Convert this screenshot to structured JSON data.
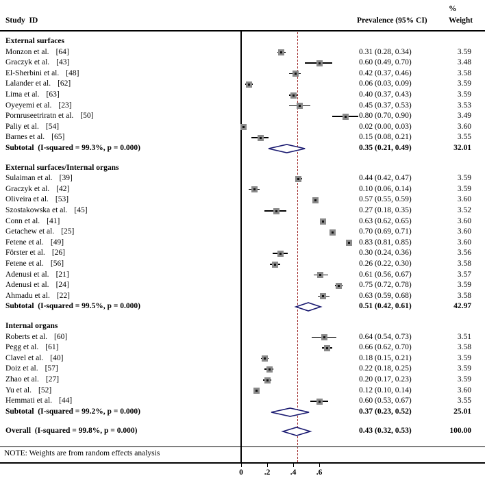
{
  "chart_data": {
    "type": "forest",
    "columns": {
      "study": "Study  ID",
      "effect": "Prevalence (95% CI)",
      "weight_pct": "%",
      "weight": "Weight"
    },
    "axis": {
      "ticks": [
        0,
        0.2,
        0.4,
        0.6
      ],
      "tick_labels": [
        "0",
        ".2",
        ".4",
        ".6"
      ],
      "null_line": 0,
      "overall_line": 0.43,
      "xlim": [
        0,
        0.95
      ]
    },
    "colors": {
      "marker": "#8a8a8a",
      "marker_dot": "#111111",
      "ci_line": "#000000",
      "diamond": "#191970",
      "overall_dash": "#a02c2c"
    },
    "groups": [
      {
        "label": "External surfaces",
        "studies": [
          {
            "label": "Monzon et al.",
            "ref": "[64]",
            "est": 0.31,
            "lo": 0.28,
            "hi": 0.34,
            "ci_text": "0.31 (0.28, 0.34)",
            "weight": "3.59"
          },
          {
            "label": "Graczyk et al.",
            "ref": "[43]",
            "est": 0.6,
            "lo": 0.49,
            "hi": 0.7,
            "ci_text": "0.60 (0.49, 0.70)",
            "weight": "3.48"
          },
          {
            "label": "El-Sherbini et al.",
            "ref": "[48]",
            "est": 0.42,
            "lo": 0.37,
            "hi": 0.46,
            "ci_text": "0.42 (0.37, 0.46)",
            "weight": "3.58"
          },
          {
            "label": "Lalander et al.",
            "ref": "[62]",
            "est": 0.06,
            "lo": 0.03,
            "hi": 0.09,
            "ci_text": "0.06 (0.03, 0.09)",
            "weight": "3.59"
          },
          {
            "label": "Lima et al.",
            "ref": "[63]",
            "est": 0.4,
            "lo": 0.37,
            "hi": 0.43,
            "ci_text": "0.40 (0.37, 0.43)",
            "weight": "3.59"
          },
          {
            "label": "Oyeyemi et al.",
            "ref": "[23]",
            "est": 0.45,
            "lo": 0.37,
            "hi": 0.53,
            "ci_text": "0.45 (0.37, 0.53)",
            "weight": "3.53"
          },
          {
            "label": "Pornruseetriratn et al.",
            "ref": "[50]",
            "est": 0.8,
            "lo": 0.7,
            "hi": 0.9,
            "ci_text": "0.80 (0.70, 0.90)",
            "weight": "3.49"
          },
          {
            "label": "Paliy et al.",
            "ref": "[54]",
            "est": 0.02,
            "lo": 0.0,
            "hi": 0.03,
            "ci_text": "0.02 (0.00, 0.03)",
            "weight": "3.60"
          },
          {
            "label": "Barnes et al.",
            "ref": "[65]",
            "est": 0.15,
            "lo": 0.08,
            "hi": 0.21,
            "ci_text": "0.15 (0.08, 0.21)",
            "weight": "3.55"
          }
        ],
        "subtotal": {
          "label": "Subtotal  (I-squared = 99.3%, p = 0.000)",
          "est": 0.35,
          "lo": 0.21,
          "hi": 0.49,
          "ci_text": "0.35 (0.21, 0.49)",
          "weight": "32.01"
        }
      },
      {
        "label": "External surfaces/Internal organs",
        "studies": [
          {
            "label": "Sulaiman et al.",
            "ref": "[39]",
            "est": 0.44,
            "lo": 0.42,
            "hi": 0.47,
            "ci_text": "0.44 (0.42, 0.47)",
            "weight": "3.59"
          },
          {
            "label": "Graczyk et al.",
            "ref": "[42]",
            "est": 0.1,
            "lo": 0.06,
            "hi": 0.14,
            "ci_text": "0.10 (0.06, 0.14)",
            "weight": "3.59"
          },
          {
            "label": "Oliveira et al.",
            "ref": "[53]",
            "est": 0.57,
            "lo": 0.55,
            "hi": 0.59,
            "ci_text": "0.57 (0.55, 0.59)",
            "weight": "3.60"
          },
          {
            "label": "Szostakowska et al.",
            "ref": "[45]",
            "est": 0.27,
            "lo": 0.18,
            "hi": 0.35,
            "ci_text": "0.27 (0.18, 0.35)",
            "weight": "3.52"
          },
          {
            "label": "Conn et al.",
            "ref": "[41]",
            "est": 0.63,
            "lo": 0.62,
            "hi": 0.65,
            "ci_text": "0.63 (0.62, 0.65)",
            "weight": "3.60"
          },
          {
            "label": "Getachew et al.",
            "ref": "[25]",
            "est": 0.7,
            "lo": 0.69,
            "hi": 0.71,
            "ci_text": "0.70 (0.69, 0.71)",
            "weight": "3.60"
          },
          {
            "label": "Fetene et al.",
            "ref": "[49]",
            "est": 0.83,
            "lo": 0.81,
            "hi": 0.85,
            "ci_text": "0.83 (0.81, 0.85)",
            "weight": "3.60"
          },
          {
            "label": "Förster et al.",
            "ref": "[26]",
            "est": 0.3,
            "lo": 0.24,
            "hi": 0.36,
            "ci_text": "0.30 (0.24, 0.36)",
            "weight": "3.56"
          },
          {
            "label": "Fetene et al.",
            "ref": "[56]",
            "est": 0.26,
            "lo": 0.22,
            "hi": 0.3,
            "ci_text": "0.26 (0.22, 0.30)",
            "weight": "3.58"
          },
          {
            "label": "Adenusi et al.",
            "ref": "[21]",
            "est": 0.61,
            "lo": 0.56,
            "hi": 0.67,
            "ci_text": "0.61 (0.56, 0.67)",
            "weight": "3.57"
          },
          {
            "label": "Adenusi et al.",
            "ref": "[24]",
            "est": 0.75,
            "lo": 0.72,
            "hi": 0.78,
            "ci_text": "0.75 (0.72, 0.78)",
            "weight": "3.59"
          },
          {
            "label": "Ahmadu et al.",
            "ref": "[22]",
            "est": 0.63,
            "lo": 0.59,
            "hi": 0.68,
            "ci_text": "0.63 (0.59, 0.68)",
            "weight": "3.58"
          }
        ],
        "subtotal": {
          "label": "Subtotal  (I-squared = 99.5%, p = 0.000)",
          "est": 0.51,
          "lo": 0.42,
          "hi": 0.61,
          "ci_text": "0.51 (0.42, 0.61)",
          "weight": "42.97"
        }
      },
      {
        "label": "Internal organs",
        "studies": [
          {
            "label": "Roberts et al.",
            "ref": "[60]",
            "est": 0.64,
            "lo": 0.54,
            "hi": 0.73,
            "ci_text": "0.64 (0.54, 0.73)",
            "weight": "3.51"
          },
          {
            "label": "Pegg et al.",
            "ref": "[61]",
            "est": 0.66,
            "lo": 0.62,
            "hi": 0.7,
            "ci_text": "0.66 (0.62, 0.70)",
            "weight": "3.58"
          },
          {
            "label": "Clavel et al.",
            "ref": "[40]",
            "est": 0.18,
            "lo": 0.15,
            "hi": 0.21,
            "ci_text": "0.18 (0.15, 0.21)",
            "weight": "3.59"
          },
          {
            "label": "Doiz et al.",
            "ref": "[57]",
            "est": 0.22,
            "lo": 0.18,
            "hi": 0.25,
            "ci_text": "0.22 (0.18, 0.25)",
            "weight": "3.59"
          },
          {
            "label": "Zhao et al.",
            "ref": "[27]",
            "est": 0.2,
            "lo": 0.17,
            "hi": 0.23,
            "ci_text": "0.20 (0.17, 0.23)",
            "weight": "3.59"
          },
          {
            "label": "Yu et al.",
            "ref": "[52]",
            "est": 0.12,
            "lo": 0.1,
            "hi": 0.14,
            "ci_text": "0.12 (0.10, 0.14)",
            "weight": "3.60"
          },
          {
            "label": "Hemmati et al.",
            "ref": "[44]",
            "est": 0.6,
            "lo": 0.53,
            "hi": 0.67,
            "ci_text": "0.60 (0.53, 0.67)",
            "weight": "3.55"
          }
        ],
        "subtotal": {
          "label": "Subtotal  (I-squared = 99.2%, p = 0.000)",
          "est": 0.37,
          "lo": 0.23,
          "hi": 0.52,
          "ci_text": "0.37 (0.23, 0.52)",
          "weight": "25.01"
        }
      }
    ],
    "overall": {
      "label": "Overall  (I-squared = 99.8%, p = 0.000)",
      "est": 0.43,
      "lo": 0.32,
      "hi": 0.53,
      "ci_text": "0.43 (0.32, 0.53)",
      "weight": "100.00"
    },
    "note": "NOTE: Weights are from random effects analysis"
  }
}
